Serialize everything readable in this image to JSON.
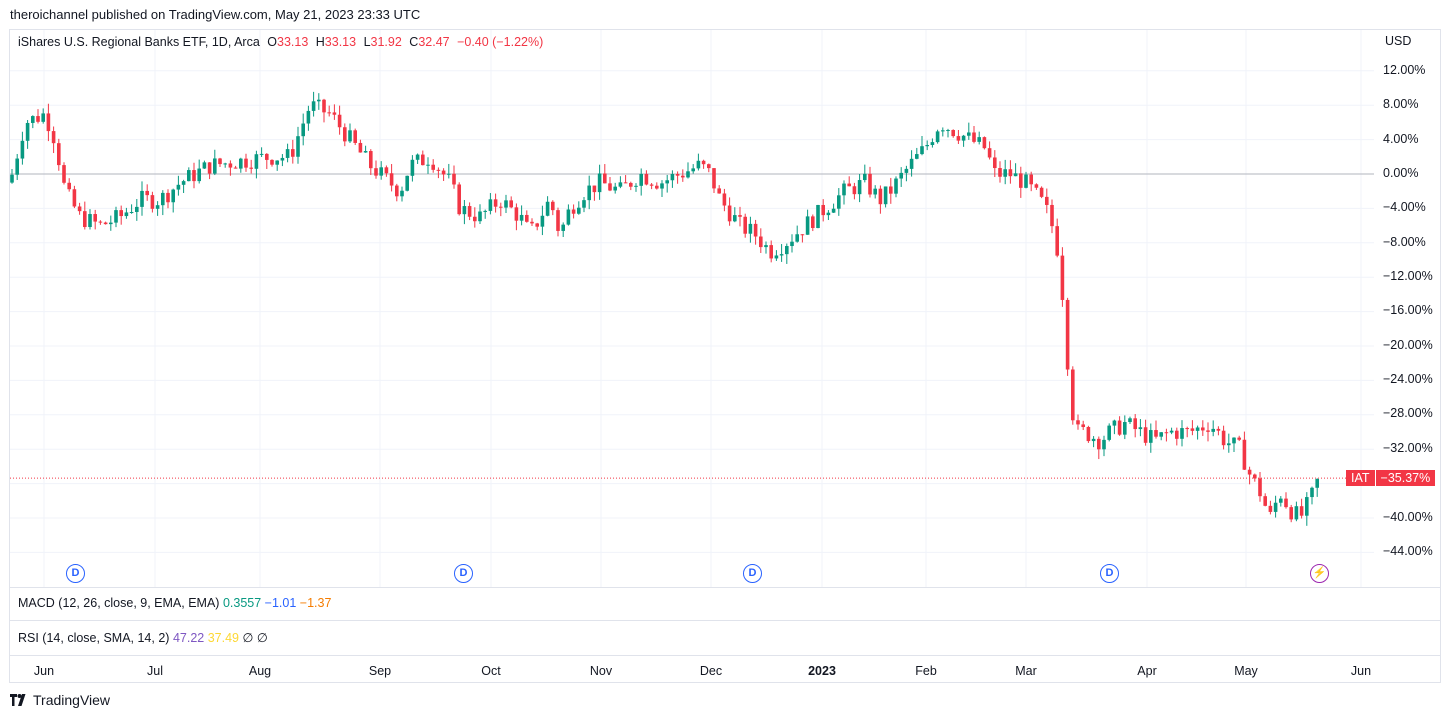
{
  "publisher": "theroichannel published on TradingView.com, May 21, 2023 23:33 UTC",
  "legend": {
    "title": "iShares U.S. Regional Banks ETF, 1D, Arca",
    "o_label": "O",
    "o": "33.13",
    "h_label": "H",
    "h": "33.13",
    "l_label": "L",
    "l": "31.92",
    "c_label": "C",
    "c": "32.47",
    "change": "−0.40 (−1.22%)"
  },
  "currency": "USD",
  "y_axis": [
    "12.00%",
    "8.00%",
    "4.00%",
    "0.00%",
    "−4.00%",
    "−8.00%",
    "−12.00%",
    "−16.00%",
    "−20.00%",
    "−24.00%",
    "−28.00%",
    "−32.00%",
    "−36.00%",
    "−40.00%",
    "−44.00%"
  ],
  "price_tag": {
    "symbol": "IAT",
    "value": "−35.37%"
  },
  "markers": [
    {
      "label": "D",
      "icon": "dividend-icon"
    },
    {
      "label": "D",
      "icon": "dividend-icon"
    },
    {
      "label": "D",
      "icon": "dividend-icon"
    },
    {
      "label": "D",
      "icon": "dividend-icon"
    },
    {
      "label": "⚡",
      "icon": "lightning-icon"
    }
  ],
  "macd": {
    "label": "MACD (12, 26, close, 9, EMA, EMA)",
    "v1": "0.3557",
    "v2": "−1.01",
    "v3": "−1.37"
  },
  "rsi": {
    "label": "RSI (14, close, SMA, 14, 2)",
    "v1": "47.22",
    "v2": "37.49",
    "v3": "∅",
    "v4": "∅"
  },
  "x_axis": [
    "Jun",
    "Jul",
    "Aug",
    "Sep",
    "Oct",
    "Nov",
    "Dec",
    "2023",
    "Feb",
    "Mar",
    "Apr",
    "May",
    "Jun"
  ],
  "branding": "TradingView",
  "colors": {
    "up": "#089981",
    "down": "#f23645",
    "grid": "#f0f3fa",
    "zero_line": "#b2b5be"
  },
  "chart_data": {
    "type": "candlestick",
    "unit": "percent change",
    "ylim": [
      -46,
      14
    ],
    "grid": true,
    "candles_ohlc": [
      [
        0,
        -1.5,
        1.2,
        -2.5,
        1
      ],
      [
        1,
        0.5,
        4.5,
        -0.5,
        3.5
      ],
      [
        3,
        3.5,
        8,
        2.5,
        6
      ],
      [
        6,
        6,
        8,
        5,
        7
      ],
      [
        7,
        7,
        8.5,
        5,
        5
      ],
      [
        5,
        5,
        7.5,
        4,
        7
      ],
      [
        7,
        7,
        8.2,
        6,
        5.5
      ],
      [
        5.5,
        5.5,
        6.5,
        4,
        6.5
      ],
      [
        6.5,
        6.5,
        6.8,
        4,
        4.5
      ],
      [
        4.5,
        4.5,
        5,
        1,
        2
      ],
      [
        0,
        0,
        -0.5,
        -2,
        -4
      ],
      [
        -4,
        -4,
        -3.5,
        -5.5,
        -5
      ],
      [
        -5,
        -5,
        -3,
        -6,
        -4
      ],
      [
        -4,
        -4,
        -2,
        -6.5,
        -6
      ],
      [
        -6,
        -6,
        -5,
        -7.5,
        -7
      ],
      [
        -7,
        -7,
        -5,
        -8,
        -6
      ],
      [
        -6,
        -6,
        -4,
        -7,
        -4.5
      ],
      [
        -4.5,
        -4.5,
        -3,
        -6.5,
        -6
      ],
      [
        -6,
        -6,
        -3.5,
        -7,
        -4
      ],
      [
        -4,
        -4,
        -1,
        -5,
        -1.5
      ],
      [
        -1.5,
        -1.5,
        0.5,
        -3,
        -1
      ],
      [
        -1,
        -1,
        0,
        -5,
        -4
      ],
      [
        -4,
        -4,
        -3,
        -6,
        -5.5
      ],
      [
        -5.5,
        -5.5,
        -3,
        -6.5,
        -4
      ],
      [
        -4,
        -4,
        -2,
        -5,
        -2.5
      ],
      [
        -2.5,
        -2.5,
        -1.5,
        -3,
        -2
      ],
      [
        -2,
        -2,
        -1,
        -5,
        -4
      ],
      [
        -4,
        -4,
        -3.5,
        -8,
        -5
      ],
      [
        -5,
        -5,
        -3,
        -5.5,
        -4
      ],
      [
        -4,
        -4,
        -2.5,
        -5.5,
        -3
      ],
      [
        -3,
        -3,
        -1,
        -4,
        -1.5
      ],
      [
        -1.5,
        -1.5,
        0.5,
        -2,
        -0.5
      ],
      [
        -0.5,
        -0.5,
        1,
        -1.5,
        0.5
      ],
      [
        0.5,
        0.5,
        1.5,
        -1,
        0
      ],
      [
        0,
        0,
        1.5,
        -1,
        1
      ],
      [
        1,
        1,
        2.5,
        0,
        2
      ],
      [
        2,
        2,
        2.5,
        0,
        0
      ],
      [
        0,
        0,
        1.5,
        -0.5,
        1
      ],
      [
        1,
        1,
        2.5,
        0.5,
        2.5
      ],
      [
        2.5,
        2.5,
        3.5,
        1.5,
        3
      ]
    ]
  }
}
